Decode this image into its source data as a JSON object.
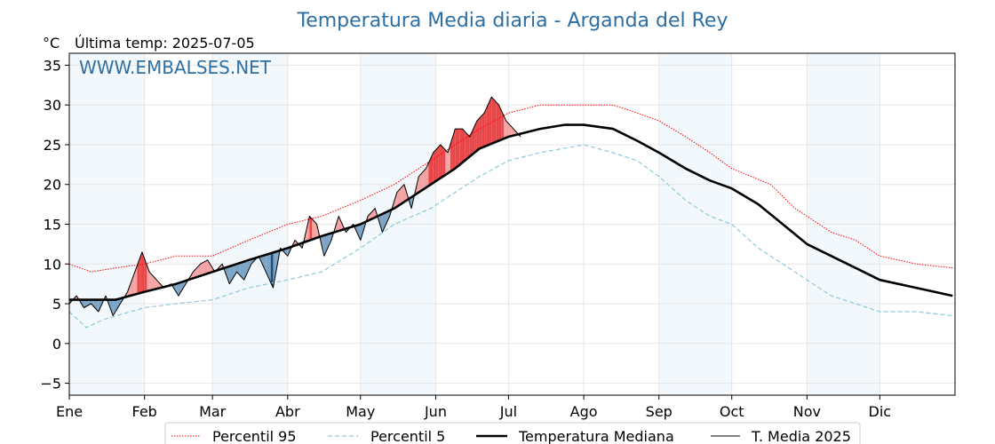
{
  "chart_data": {
    "type": "line",
    "title": "Temperatura Media diaria - Arganda del Rey",
    "unit_label": "°C",
    "subtitle": "Última temp: 2025-07-05",
    "watermark": "WWW.EMBALSES.NET",
    "ylim": [
      -6.5,
      36.5
    ],
    "y_ticks": [
      35,
      30,
      25,
      20,
      15,
      10,
      5,
      0,
      -5
    ],
    "y_tick_labels": [
      "35",
      "30",
      "25",
      "20",
      "15",
      "10",
      "5",
      "0",
      "−5"
    ],
    "months": [
      "Ene",
      "Feb",
      "Mar",
      "Abr",
      "May",
      "Jun",
      "Jul",
      "Ago",
      "Sep",
      "Oct",
      "Nov",
      "Dic"
    ],
    "month_start_days": [
      1,
      32,
      60,
      91,
      121,
      152,
      182,
      213,
      244,
      274,
      305,
      335
    ],
    "shaded_months": [
      "Ene",
      "Mar",
      "May",
      "Sep",
      "Nov"
    ],
    "grid": true,
    "legend_position": "bottom-center",
    "colors": {
      "p95": "#ff0000",
      "p5": "#8ec8dd",
      "median": "#000000",
      "year": "#000000",
      "above_fill": "#f4a3a3",
      "below_fill": "#7ba3c4",
      "above_p95_fill": "#e8474a",
      "below_p5_fill": "#1d4f7a",
      "title": "#2e6fa3"
    },
    "series": [
      {
        "name": "Percentil 95",
        "style": "dotted-red",
        "points": [
          [
            1,
            10
          ],
          [
            10,
            9
          ],
          [
            20,
            9.5
          ],
          [
            32,
            10
          ],
          [
            45,
            11
          ],
          [
            60,
            11
          ],
          [
            75,
            13
          ],
          [
            91,
            15
          ],
          [
            105,
            16
          ],
          [
            121,
            18
          ],
          [
            135,
            20
          ],
          [
            150,
            23
          ],
          [
            160,
            25
          ],
          [
            170,
            27
          ],
          [
            182,
            29
          ],
          [
            195,
            30
          ],
          [
            213,
            30
          ],
          [
            225,
            30
          ],
          [
            235,
            29
          ],
          [
            244,
            28
          ],
          [
            255,
            26
          ],
          [
            265,
            24
          ],
          [
            274,
            22
          ],
          [
            290,
            20
          ],
          [
            300,
            17
          ],
          [
            305,
            16
          ],
          [
            315,
            14
          ],
          [
            325,
            13
          ],
          [
            335,
            11
          ],
          [
            350,
            10
          ],
          [
            365,
            9.5
          ]
        ]
      },
      {
        "name": "Percentil 5",
        "style": "dashed-lightblue",
        "points": [
          [
            1,
            4
          ],
          [
            8,
            2
          ],
          [
            15,
            3
          ],
          [
            32,
            4.5
          ],
          [
            45,
            5
          ],
          [
            60,
            5.5
          ],
          [
            75,
            7
          ],
          [
            91,
            8
          ],
          [
            105,
            9
          ],
          [
            121,
            12
          ],
          [
            135,
            15
          ],
          [
            150,
            17
          ],
          [
            160,
            19
          ],
          [
            170,
            21
          ],
          [
            182,
            23
          ],
          [
            195,
            24
          ],
          [
            213,
            25
          ],
          [
            225,
            24
          ],
          [
            235,
            23
          ],
          [
            244,
            21
          ],
          [
            255,
            18
          ],
          [
            265,
            16
          ],
          [
            274,
            15
          ],
          [
            285,
            12
          ],
          [
            295,
            10
          ],
          [
            305,
            8
          ],
          [
            315,
            6
          ],
          [
            325,
            5
          ],
          [
            335,
            4
          ],
          [
            350,
            4
          ],
          [
            365,
            3.5
          ]
        ]
      },
      {
        "name": "Temperatura Mediana",
        "style": "thick-black",
        "points": [
          [
            1,
            5.5
          ],
          [
            10,
            5.5
          ],
          [
            20,
            5.5
          ],
          [
            32,
            6.5
          ],
          [
            45,
            7.5
          ],
          [
            60,
            9
          ],
          [
            75,
            10.5
          ],
          [
            91,
            12
          ],
          [
            105,
            13.5
          ],
          [
            121,
            15
          ],
          [
            135,
            17
          ],
          [
            150,
            20
          ],
          [
            160,
            22
          ],
          [
            170,
            24.5
          ],
          [
            182,
            26
          ],
          [
            195,
            27
          ],
          [
            205,
            27.5
          ],
          [
            213,
            27.5
          ],
          [
            225,
            27
          ],
          [
            235,
            25.5
          ],
          [
            244,
            24
          ],
          [
            255,
            22
          ],
          [
            265,
            20.5
          ],
          [
            274,
            19.5
          ],
          [
            285,
            17.5
          ],
          [
            295,
            15
          ],
          [
            305,
            12.5
          ],
          [
            315,
            11
          ],
          [
            325,
            9.5
          ],
          [
            335,
            8
          ],
          [
            350,
            7
          ],
          [
            365,
            6
          ]
        ]
      },
      {
        "name": "T. Media 2025",
        "style": "thin-black",
        "points": [
          [
            1,
            5
          ],
          [
            4,
            6
          ],
          [
            7,
            4.5
          ],
          [
            10,
            5
          ],
          [
            13,
            4
          ],
          [
            16,
            6
          ],
          [
            19,
            3.5
          ],
          [
            22,
            5
          ],
          [
            25,
            6.5
          ],
          [
            28,
            9
          ],
          [
            31,
            11.5
          ],
          [
            34,
            9
          ],
          [
            37,
            8
          ],
          [
            40,
            7
          ],
          [
            43,
            7.5
          ],
          [
            46,
            6
          ],
          [
            49,
            7.5
          ],
          [
            52,
            9
          ],
          [
            55,
            10
          ],
          [
            58,
            10.5
          ],
          [
            61,
            9
          ],
          [
            64,
            10
          ],
          [
            67,
            7.5
          ],
          [
            70,
            9
          ],
          [
            73,
            8
          ],
          [
            76,
            10
          ],
          [
            79,
            11
          ],
          [
            82,
            9
          ],
          [
            85,
            7
          ],
          [
            88,
            12
          ],
          [
            91,
            11
          ],
          [
            94,
            13
          ],
          [
            97,
            12
          ],
          [
            100,
            16
          ],
          [
            103,
            15
          ],
          [
            106,
            11
          ],
          [
            109,
            13
          ],
          [
            112,
            16
          ],
          [
            115,
            14
          ],
          [
            118,
            15
          ],
          [
            121,
            13
          ],
          [
            124,
            16
          ],
          [
            127,
            17
          ],
          [
            130,
            14
          ],
          [
            133,
            16
          ],
          [
            136,
            19
          ],
          [
            139,
            20
          ],
          [
            142,
            17
          ],
          [
            145,
            21
          ],
          [
            148,
            22
          ],
          [
            151,
            24
          ],
          [
            154,
            25
          ],
          [
            157,
            24
          ],
          [
            160,
            27
          ],
          [
            163,
            27
          ],
          [
            166,
            26
          ],
          [
            169,
            28
          ],
          [
            172,
            29
          ],
          [
            175,
            31
          ],
          [
            178,
            30
          ],
          [
            181,
            28
          ],
          [
            184,
            27
          ],
          [
            187,
            26
          ]
        ]
      }
    ]
  },
  "legend": {
    "items": [
      "Percentil 95",
      "Percentil 5",
      "Temperatura Mediana",
      "T. Media 2025"
    ]
  }
}
